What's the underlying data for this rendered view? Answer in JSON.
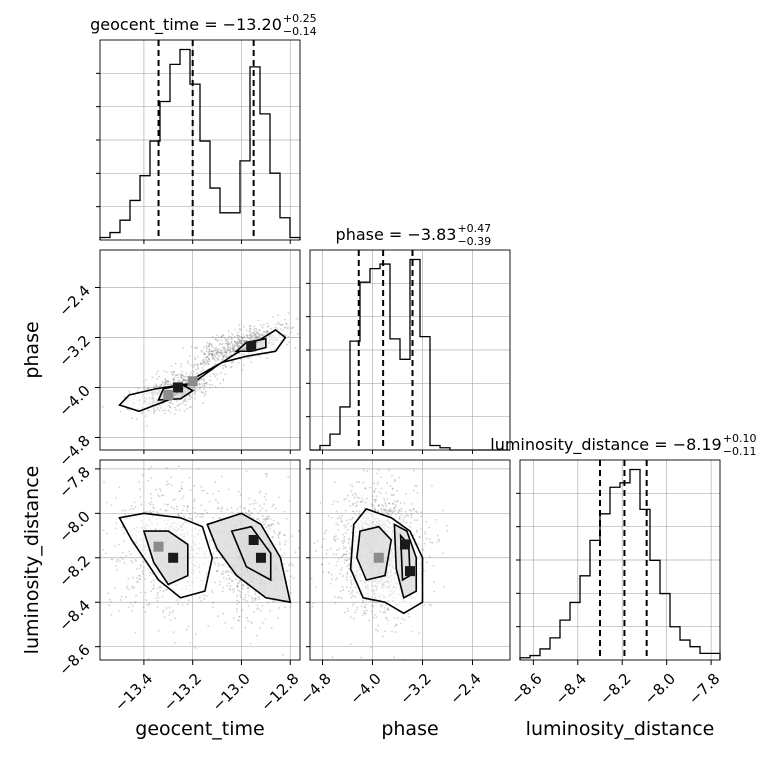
{
  "chart_data": {
    "type": "corner",
    "grid": true,
    "colors": {
      "line": "#000000",
      "grid": "#b0b0b0",
      "sample": "#7a7a7a",
      "fill_light": "#dcdcdc",
      "fill_dark": "#8c8c8c"
    },
    "parameters": [
      {
        "name": "geocent_time",
        "label": "geocent_time",
        "title": {
          "prefix": "geocent_time = ",
          "median": "−13.20",
          "plus": "+0.25",
          "minus": "−0.14"
        },
        "range": [
          -13.58,
          -12.76
        ],
        "ticks": [
          -13.4,
          -13.2,
          -13.0,
          -12.8
        ],
        "tick_labels": [
          "−13.4",
          "−13.2",
          "−13.0",
          "−12.8"
        ],
        "quantiles": [
          -13.34,
          -13.2,
          -12.95
        ],
        "histogram": {
          "edges": [
            -13.58,
            -13.539,
            -13.498,
            -13.457,
            -13.416,
            -13.375,
            -13.334,
            -13.293,
            -13.252,
            -13.211,
            -13.17,
            -13.129,
            -13.088,
            -13.047,
            -13.006,
            -12.965,
            -12.924,
            -12.883,
            -12.842,
            -12.801,
            -12.76
          ],
          "counts": [
            1,
            3,
            8,
            16,
            26,
            40,
            56,
            71,
            77,
            63,
            40,
            21,
            11,
            11,
            32,
            70,
            51,
            27,
            9,
            1
          ]
        }
      },
      {
        "name": "phase",
        "label": "phase",
        "title": {
          "prefix": "phase = ",
          "median": "−3.83",
          "plus": "+0.47",
          "minus": "−0.39"
        },
        "range": [
          -5.0,
          -1.8
        ],
        "ticks": [
          -4.8,
          -4.0,
          -3.2,
          -2.4
        ],
        "tick_labels": [
          "−4.8",
          "−4.0",
          "−3.2",
          "−2.4"
        ],
        "quantiles": [
          -4.22,
          -3.83,
          -3.36
        ],
        "histogram": {
          "edges": [
            -5.0,
            -4.84,
            -4.68,
            -4.52,
            -4.36,
            -4.2,
            -4.04,
            -3.88,
            -3.72,
            -3.56,
            -3.4,
            -3.24,
            -3.08,
            -2.92,
            -2.76,
            -2.6,
            -2.44,
            -2.28,
            -2.12,
            -1.96,
            -1.8
          ],
          "counts": [
            0,
            2,
            7,
            19,
            48,
            74,
            80,
            82,
            49,
            40,
            84,
            50,
            2,
            1,
            0,
            0,
            0,
            0,
            0,
            0
          ]
        }
      },
      {
        "name": "luminosity_distance",
        "label": "luminosity_distance",
        "title": {
          "prefix": "luminosity_distance = ",
          "median": "−8.19",
          "plus": "+0.10",
          "minus": "−0.11"
        },
        "range": [
          -8.66,
          -7.76
        ],
        "ticks": [
          -8.6,
          -8.4,
          -8.2,
          -8.0,
          -7.8
        ],
        "tick_labels": [
          "−8.6",
          "−8.4",
          "−8.2",
          "−8.0",
          "−7.8"
        ],
        "quantiles": [
          -8.3,
          -8.19,
          -8.09
        ],
        "histogram": {
          "edges": [
            -8.66,
            -8.615,
            -8.57,
            -8.525,
            -8.48,
            -8.435,
            -8.39,
            -8.345,
            -8.3,
            -8.255,
            -8.21,
            -8.165,
            -8.12,
            -8.075,
            -8.03,
            -7.985,
            -7.94,
            -7.895,
            -7.85,
            -7.805,
            -7.76
          ],
          "counts": [
            1,
            2,
            5,
            10,
            18,
            26,
            38,
            54,
            66,
            78,
            80,
            86,
            68,
            45,
            30,
            15,
            9,
            6,
            3,
            3
          ]
        }
      }
    ],
    "pairs": [
      {
        "x": "geocent_time",
        "y": "phase",
        "samples": {
          "center": [
            [
              -13.28,
              -4.05
            ],
            [
              -13.0,
              -3.32
            ]
          ],
          "spread": [
            [
              0.09,
              0.14
            ],
            [
              0.1,
              0.12
            ]
          ],
          "count": 1200,
          "seed": 11
        },
        "contours": [
          [
            [
              -13.5,
              -4.28
            ],
            [
              -13.46,
              -4.12
            ],
            [
              -13.35,
              -4.02
            ],
            [
              -13.2,
              -3.93
            ],
            [
              -13.1,
              -3.65
            ],
            [
              -13.02,
              -3.45
            ],
            [
              -12.95,
              -3.3
            ],
            [
              -12.86,
              -3.08
            ],
            [
              -12.82,
              -3.2
            ],
            [
              -12.86,
              -3.42
            ],
            [
              -12.98,
              -3.5
            ],
            [
              -13.08,
              -3.6
            ],
            [
              -13.18,
              -3.82
            ],
            [
              -13.3,
              -4.2
            ],
            [
              -13.42,
              -4.38
            ]
          ],
          [
            [
              -13.34,
              -4.2
            ],
            [
              -13.32,
              -4.02
            ],
            [
              -13.24,
              -3.96
            ],
            [
              -13.2,
              -4.05
            ],
            [
              -13.25,
              -4.18
            ]
          ],
          [
            [
              -13.02,
              -3.42
            ],
            [
              -12.98,
              -3.28
            ],
            [
              -12.9,
              -3.22
            ],
            [
              -12.9,
              -3.36
            ],
            [
              -12.96,
              -3.42
            ]
          ]
        ],
        "dense_cells": [
          [
            -13.26,
            -4.0,
            "dark"
          ],
          [
            -13.3,
            -4.12,
            "light"
          ],
          [
            -13.2,
            -3.9,
            "light"
          ],
          [
            -12.96,
            -3.34,
            "dark"
          ]
        ]
      },
      {
        "x": "geocent_time",
        "y": "luminosity_distance",
        "samples": {
          "center": [
            [
              -13.3,
              -8.15
            ],
            [
              -12.95,
              -8.2
            ]
          ],
          "spread": [
            [
              0.12,
              0.16
            ],
            [
              0.07,
              0.13
            ]
          ],
          "count": 1400,
          "seed": 23
        },
        "contours": [
          [
            [
              -13.5,
              -8.02
            ],
            [
              -13.4,
              -8.0
            ],
            [
              -13.25,
              -8.02
            ],
            [
              -13.16,
              -8.06
            ],
            [
              -13.12,
              -8.2
            ],
            [
              -13.15,
              -8.35
            ],
            [
              -13.25,
              -8.38
            ],
            [
              -13.34,
              -8.3
            ],
            [
              -13.45,
              -8.12
            ]
          ],
          [
            [
              -13.4,
              -8.08
            ],
            [
              -13.3,
              -8.08
            ],
            [
              -13.22,
              -8.14
            ],
            [
              -13.22,
              -8.28
            ],
            [
              -13.3,
              -8.32
            ],
            [
              -13.36,
              -8.22
            ]
          ],
          [
            [
              -13.14,
              -8.05
            ],
            [
              -13.0,
              -8.0
            ],
            [
              -12.92,
              -8.05
            ],
            [
              -12.84,
              -8.2
            ],
            [
              -12.8,
              -8.4
            ],
            [
              -12.9,
              -8.38
            ],
            [
              -13.02,
              -8.28
            ],
            [
              -13.1,
              -8.16
            ]
          ],
          [
            [
              -13.04,
              -8.08
            ],
            [
              -12.96,
              -8.06
            ],
            [
              -12.88,
              -8.18
            ],
            [
              -12.88,
              -8.3
            ],
            [
              -12.98,
              -8.24
            ]
          ]
        ],
        "dense_cells": [
          [
            -13.28,
            -8.2,
            "dark"
          ],
          [
            -12.95,
            -8.12,
            "dark"
          ],
          [
            -12.92,
            -8.2,
            "dark"
          ],
          [
            -13.34,
            -8.15,
            "light"
          ]
        ]
      },
      {
        "x": "phase",
        "y": "luminosity_distance",
        "samples": {
          "center": [
            [
              -3.9,
              -8.18
            ]
          ],
          "spread": [
            [
              0.35,
              0.15
            ]
          ],
          "count": 1400,
          "seed": 37
        },
        "contours": [
          [
            [
              -4.3,
              -8.05
            ],
            [
              -4.1,
              -7.98
            ],
            [
              -3.7,
              -8.02
            ],
            [
              -3.4,
              -8.08
            ],
            [
              -3.2,
              -8.2
            ],
            [
              -3.2,
              -8.4
            ],
            [
              -3.5,
              -8.45
            ],
            [
              -3.8,
              -8.4
            ],
            [
              -4.15,
              -8.38
            ],
            [
              -4.35,
              -8.25
            ]
          ],
          [
            [
              -4.2,
              -8.08
            ],
            [
              -3.9,
              -8.06
            ],
            [
              -3.7,
              -8.12
            ],
            [
              -3.8,
              -8.28
            ],
            [
              -4.1,
              -8.3
            ],
            [
              -4.25,
              -8.2
            ]
          ],
          [
            [
              -3.65,
              -8.05
            ],
            [
              -3.45,
              -8.08
            ],
            [
              -3.3,
              -8.2
            ],
            [
              -3.3,
              -8.35
            ],
            [
              -3.5,
              -8.38
            ],
            [
              -3.62,
              -8.25
            ]
          ],
          [
            [
              -3.55,
              -8.1
            ],
            [
              -3.42,
              -8.14
            ],
            [
              -3.4,
              -8.28
            ],
            [
              -3.52,
              -8.3
            ]
          ]
        ],
        "dense_cells": [
          [
            -3.48,
            -8.14,
            "dark"
          ],
          [
            -3.9,
            -8.2,
            "light"
          ],
          [
            -3.4,
            -8.26,
            "dark"
          ]
        ]
      }
    ]
  }
}
